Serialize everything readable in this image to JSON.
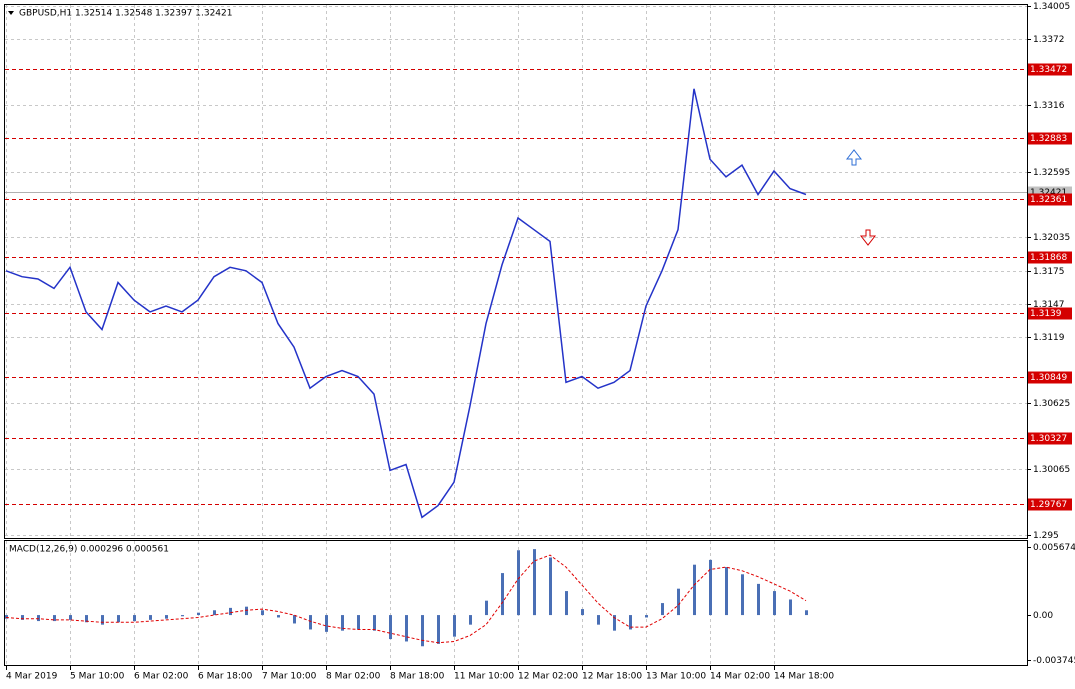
{
  "chart_data": [
    {
      "type": "line",
      "title": "GBPUSD,H1  1.32514 1.32548 1.32397 1.32421",
      "categories": [
        "4 Mar 2019",
        null,
        null,
        null,
        "5 Mar 10:00",
        null,
        null,
        null,
        "6 Mar 02:00",
        null,
        null,
        null,
        "6 Mar 18:00",
        null,
        null,
        null,
        "7 Mar 10:00",
        null,
        null,
        null,
        "8 Mar 02:00",
        null,
        null,
        null,
        "8 Mar 18:00",
        null,
        null,
        null,
        "11 Mar 10:00",
        null,
        null,
        null,
        "12 Mar 02:00",
        null,
        null,
        null,
        "12 Mar 18:00",
        null,
        null,
        null,
        "13 Mar 10:00",
        null,
        null,
        null,
        "14 Mar 02:00",
        null,
        null,
        null,
        "14 Mar 18:00",
        null,
        null
      ],
      "series": [
        {
          "color": "#2433c8",
          "values": [
            1.3175,
            1.317,
            1.3168,
            1.316,
            1.3178,
            1.314,
            1.3125,
            1.3165,
            1.315,
            1.314,
            1.3145,
            1.314,
            1.315,
            1.317,
            1.3178,
            1.3175,
            1.3165,
            1.313,
            1.311,
            1.3075,
            1.3085,
            1.309,
            1.3085,
            1.307,
            1.3005,
            1.301,
            1.2965,
            1.2975,
            1.2995,
            1.306,
            1.313,
            1.318,
            1.322,
            1.321,
            1.32,
            1.308,
            1.3085,
            1.3075,
            1.308,
            1.309,
            1.3145,
            1.3175,
            1.321,
            1.333,
            1.327,
            1.3255,
            1.3265,
            1.324,
            1.326,
            1.3245,
            1.324
          ]
        }
      ],
      "levels": [
        1.33472,
        1.32883,
        1.32361,
        1.31868,
        1.3139,
        1.30849,
        1.30327,
        1.29767
      ],
      "level_color": "#d40000",
      "current_price": 1.32421,
      "ylim": [
        1.295,
        1.34005
      ],
      "yticks": [
        1.34005,
        1.3372,
        1.3316,
        1.32595,
        1.32035,
        1.3175,
        1.3147,
        1.3119,
        1.30625,
        1.30065,
        1.295
      ],
      "grid": true
    },
    {
      "type": "bar",
      "title": "MACD(12,26,9) 0.000296 0.000561",
      "values": [
        -0.0003,
        -0.0004,
        -0.0005,
        -0.0005,
        -0.0004,
        -0.0006,
        -0.0008,
        -0.0006,
        -0.0005,
        -0.0004,
        -0.0003,
        -0.0001,
        0.0002,
        0.0004,
        0.0006,
        0.0007,
        0.0004,
        -0.0002,
        -0.0007,
        -0.0012,
        -0.0014,
        -0.0013,
        -0.0012,
        -0.0013,
        -0.002,
        -0.0022,
        -0.0026,
        -0.0024,
        -0.0018,
        -0.0008,
        0.0012,
        0.0035,
        0.0054,
        0.0055,
        0.0048,
        0.002,
        0.0005,
        -0.0008,
        -0.0013,
        -0.0012,
        -0.0002,
        0.001,
        0.0022,
        0.0042,
        0.0046,
        0.004,
        0.0034,
        0.0026,
        0.002,
        0.0013,
        0.0004
      ],
      "color": "#4a6fb5",
      "signal": {
        "color": "#e00000",
        "values": [
          -0.0002,
          -0.0003,
          -0.0003,
          -0.0004,
          -0.0004,
          -0.0005,
          -0.0006,
          -0.0006,
          -0.0006,
          -0.0005,
          -0.0004,
          -0.0003,
          -0.0002,
          0.0,
          0.0002,
          0.0004,
          0.0005,
          0.0003,
          0.0,
          -0.0005,
          -0.0009,
          -0.0011,
          -0.0012,
          -0.0012,
          -0.0015,
          -0.0018,
          -0.0021,
          -0.0023,
          -0.0022,
          -0.0017,
          -0.0008,
          0.001,
          0.003,
          0.0045,
          0.005,
          0.004,
          0.0025,
          0.001,
          -0.0002,
          -0.001,
          -0.001,
          -0.0003,
          0.0008,
          0.0025,
          0.0038,
          0.004,
          0.0037,
          0.0032,
          0.0026,
          0.002,
          0.0012
        ]
      },
      "ylim": [
        -0.003745,
        0.005674
      ],
      "yticks": [
        0.005674,
        {
          "value": 0,
          "label": "0.00"
        },
        -0.003745
      ]
    }
  ]
}
